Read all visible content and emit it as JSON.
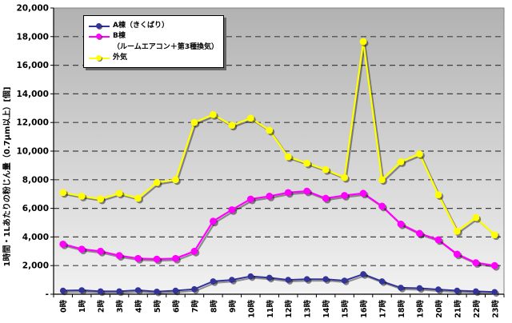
{
  "y_axis": {
    "title": "1時間・1Lあたりの粉じん量（0.7μm以上）[個]",
    "ticks": [
      {
        "label": "20,000",
        "value": 20000
      },
      {
        "label": "18,000",
        "value": 18000
      },
      {
        "label": "16,000",
        "value": 16000
      },
      {
        "label": "14,000",
        "value": 14000
      },
      {
        "label": "12,000",
        "value": 12000
      },
      {
        "label": "10,000",
        "value": 10000
      },
      {
        "label": "8,000",
        "value": 8000
      },
      {
        "label": "6,000",
        "value": 6000
      },
      {
        "label": "4,000",
        "value": 4000
      },
      {
        "label": "2,000",
        "value": 2000
      },
      {
        "label": "-",
        "value": 0
      }
    ]
  },
  "x_axis": {
    "labels": [
      "0時",
      "1時",
      "2時",
      "3時",
      "4時",
      "5時",
      "6時",
      "7時",
      "8時",
      "9時",
      "10時",
      "11時",
      "12時",
      "13時",
      "14時",
      "15時",
      "16時",
      "17時",
      "18時",
      "19時",
      "20時",
      "21時",
      "22時",
      "23時"
    ]
  },
  "legend": {
    "items": [
      {
        "lines": [
          "A棟（きくばり）"
        ],
        "color": "#333399"
      },
      {
        "lines": [
          "B棟",
          "（ルームエアコン＋第3種換気）"
        ],
        "color": "#FF00FF"
      },
      {
        "lines": [
          "外気"
        ],
        "color": "#FFFF00"
      }
    ]
  },
  "chart_data": {
    "type": "line",
    "title": "",
    "xlabel": "",
    "ylabel": "1時間・1Lあたりの粉じん量（0.7μm以上）[個]",
    "ylim": [
      0,
      20000
    ],
    "ytick_step": 2000,
    "zero_tick_label": "-",
    "grid": "horizontal-dashed",
    "legend_position": "top-left-inside",
    "categories": [
      "0時",
      "1時",
      "2時",
      "3時",
      "4時",
      "5時",
      "6時",
      "7時",
      "8時",
      "9時",
      "10時",
      "11時",
      "12時",
      "13時",
      "14時",
      "15時",
      "16時",
      "17時",
      "18時",
      "19時",
      "20時",
      "21時",
      "22時",
      "23時"
    ],
    "series": [
      {
        "name": "A棟（きくばり）",
        "color": "#333399",
        "values": [
          250,
          280,
          200,
          200,
          280,
          180,
          250,
          350,
          900,
          1000,
          1250,
          1150,
          1000,
          1050,
          1050,
          950,
          1400,
          900,
          450,
          420,
          330,
          250,
          200,
          150
        ]
      },
      {
        "name": "B棟（ルームエアコン＋第3種換気）",
        "color": "#FF00FF",
        "values": [
          3500,
          3150,
          3000,
          2700,
          2500,
          2450,
          2500,
          3000,
          5100,
          5900,
          6650,
          6850,
          7100,
          7200,
          6700,
          6900,
          7050,
          6150,
          4900,
          4250,
          3800,
          2800,
          2200,
          2000
        ]
      },
      {
        "name": "外気",
        "color": "#FFFF00",
        "values": [
          7100,
          6850,
          6650,
          7050,
          6700,
          7800,
          8000,
          12000,
          12550,
          11800,
          12300,
          11450,
          9600,
          9150,
          8700,
          8150,
          17650,
          8000,
          9250,
          9800,
          6950,
          4400,
          5350,
          4150
        ]
      }
    ]
  },
  "colors": {
    "plot_bg_top": "#b2b2b2",
    "plot_bg_bottom": "#f2f2f2",
    "gridline": "#404040",
    "axis": "#000000",
    "plot_border": "#808080",
    "page_bg": "#ffffff"
  }
}
